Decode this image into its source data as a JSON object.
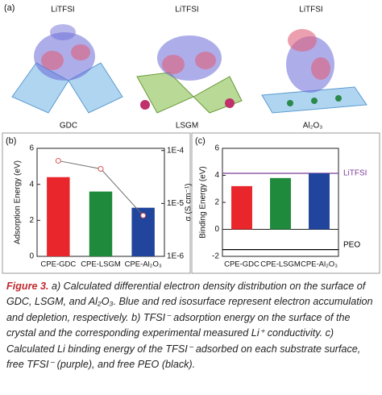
{
  "panel_a": {
    "label": "(a)",
    "molecule": "LiTFSI",
    "substrates": [
      "GDC",
      "LSGM",
      "Al₂O₃"
    ]
  },
  "chart_data": [
    {
      "type": "bar",
      "panel_label": "(b)",
      "ylabel": "Adsorption Energy (eV)",
      "y2label": "σ (S cm⁻¹)",
      "categories": [
        "CPE-GDC",
        "CPE-LSGM",
        "CPE-Al₂O₃"
      ],
      "series": [
        {
          "colors": [
            "#e8262b",
            "#1f8a3c",
            "#21449c"
          ],
          "values": [
            4.4,
            3.6,
            2.7
          ]
        },
        {
          "axis": "y2",
          "color": "#6e6e6e",
          "marker_color": "#d9534f",
          "values": [
            6.4e-05,
            4.5e-05,
            5.9e-06
          ]
        }
      ],
      "ylim": [
        0,
        6
      ],
      "yticks": [
        0,
        2,
        4,
        6
      ],
      "y2scale": "log",
      "y2lim": [
        1e-06,
        0.00011
      ],
      "y2ticks": [
        {
          "value": 1e-06,
          "label": "1E-6"
        },
        {
          "value": 1e-05,
          "label": "1E-5"
        },
        {
          "value": 0.0001,
          "label": "1E-4"
        }
      ]
    },
    {
      "type": "bar",
      "panel_label": "(c)",
      "ylabel": "Binding Energy (eV)",
      "categories": [
        "CPE-GDC",
        "CPE-LSGM",
        "CPE-Al₂O₃"
      ],
      "series": [
        {
          "colors": [
            "#e8262b",
            "#1f8a3c",
            "#21449c"
          ],
          "values": [
            3.2,
            3.8,
            4.15
          ]
        }
      ],
      "ylim": [
        -2,
        6
      ],
      "yticks": [
        -2,
        0,
        2,
        4,
        6
      ],
      "reference_lines": [
        {
          "label": "LiTFSI",
          "value": 4.15,
          "color": "#7b3a96"
        },
        {
          "label": "PEO",
          "value": -1.5,
          "color": "#000000"
        }
      ]
    }
  ],
  "caption": {
    "label": "Figure 3.",
    "text": "a) Calculated differential electron density distribution on the surface of GDC, LSGM, and Al₂O₃. Blue and red isosurface represent electron accumulation and depletion, respectively. b) TFSI⁻ adsorption energy on the surface of the crystal and the corresponding experimental measured Li⁺ conductivity. c) Calculated Li binding energy of the TFSI⁻ adsorbed on each substrate surface, free TFSI⁻ (purple), and free PEO (black)."
  }
}
